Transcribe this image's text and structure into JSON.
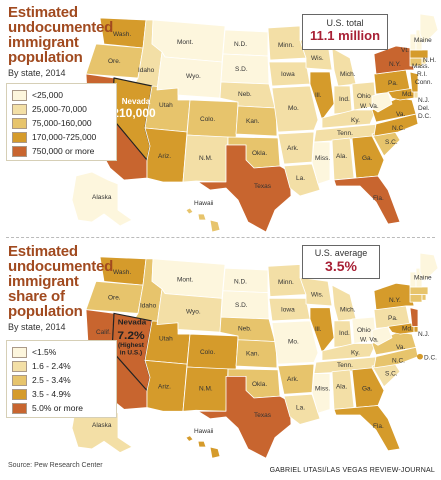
{
  "panel1": {
    "title_lines": [
      "Estimated",
      "undocumented",
      "immigrant",
      "population"
    ],
    "subtitle": "By state, 2014",
    "callout_label": "U.S. total",
    "callout_value": "11.1 million",
    "highlight_name": "Nevada",
    "highlight_value": "210,000",
    "legend": [
      {
        "label": "<25,000",
        "color": "#fdf6dd"
      },
      {
        "label": "25,000-70,000",
        "color": "#f3dfa6"
      },
      {
        "label": "75,000-160,000",
        "color": "#e7c46c"
      },
      {
        "label": "170,000-725,000",
        "color": "#d59b2b"
      },
      {
        "label": "750,000 or more",
        "color": "#c8652f"
      }
    ]
  },
  "panel2": {
    "title_lines": [
      "Estimated",
      "undocumented",
      "immigrant",
      "share of",
      "population"
    ],
    "subtitle": "By state, 2014",
    "callout_label": "U.S. average",
    "callout_value": "3.5%",
    "highlight_name": "Nevada",
    "highlight_value": "7.2%",
    "highlight_note1": "(Highest",
    "highlight_note2": "in U.S.)",
    "legend": [
      {
        "label": "<1.5%",
        "color": "#fdf6dd"
      },
      {
        "label": "1.6 - 2.4%",
        "color": "#f3dfa6"
      },
      {
        "label": "2.5 - 3.4%",
        "color": "#e7c46c"
      },
      {
        "label": "3.5 - 4.9%",
        "color": "#d59b2b"
      },
      {
        "label": "5.0% or more",
        "color": "#c8652f"
      }
    ]
  },
  "state_labels": {
    "wash": "Wash.",
    "ore": "Ore.",
    "idaho": "Idaho",
    "mont": "Mont.",
    "wyo": "Wyo.",
    "utah": "Utah",
    "calif": "Calif.",
    "ariz": "Ariz.",
    "colo": "Colo.",
    "nm": "N.M.",
    "nd": "N.D.",
    "sd": "S.D.",
    "neb": "Neb.",
    "kan": "Kan.",
    "okla": "Okla.",
    "texas": "Texas",
    "minn": "Minn.",
    "iowa": "Iowa",
    "mo": "Mo.",
    "ark": "Ark.",
    "la": "La.",
    "wis": "Wis.",
    "ill": "Ill.",
    "mich": "Mich.",
    "ind": "Ind.",
    "ohio": "Ohio",
    "ky": "Ky.",
    "tenn": "Tenn.",
    "miss": "Miss.",
    "ala": "Ala.",
    "ga": "Ga.",
    "fla": "Fla.",
    "sc": "S.C.",
    "nc": "N.C.",
    "va": "Va.",
    "wva": "W. Va.",
    "pa": "Pa.",
    "ny": "N.Y.",
    "md": "Md.",
    "del": "Del.",
    "nj": "N.J.",
    "conn": "Conn.",
    "ri": "R.I.",
    "mass": "Mass.",
    "vt": "Vt.",
    "nh": "N.H.",
    "maine": "Maine",
    "dc": "D.C.",
    "alaska": "Alaska",
    "hawaii": "Hawaii"
  },
  "source": "Source: Pew Research Center",
  "credit": "GABRIEL UTASI/LAS VEGAS REVIEW-JOURNAL",
  "colors": {
    "title": "#a14a1f",
    "callout_value": "#a82035",
    "c1": "#fdf6dd",
    "c2": "#f3dfa6",
    "c3": "#e7c46c",
    "c4": "#d59b2b",
    "c5": "#c8652f"
  }
}
